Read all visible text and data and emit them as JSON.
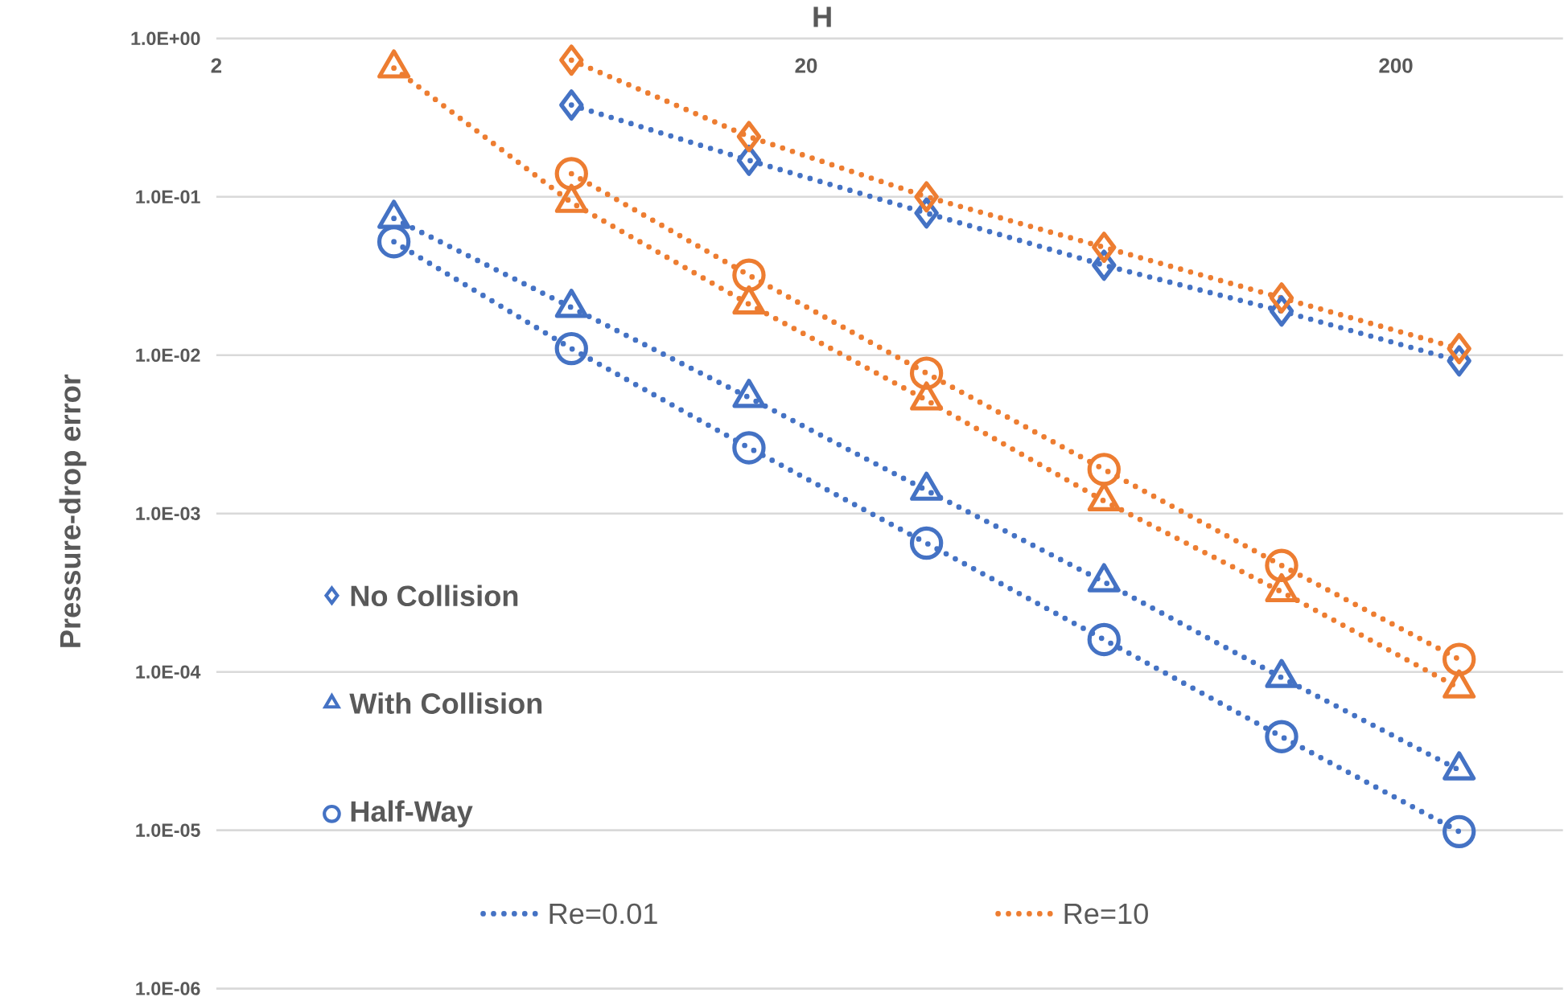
{
  "chart_data": {
    "type": "line",
    "xlabel": "H",
    "ylabel": "Pressure-drop error",
    "x": [
      4,
      8,
      16,
      32,
      64,
      128,
      256
    ],
    "log": "xy",
    "xlim": [
      2,
      384
    ],
    "ylim": [
      1e-06,
      1
    ],
    "xticks": [
      2,
      20,
      200
    ],
    "yticks": [
      {
        "value": 1e-06,
        "label": "1.0E-06"
      },
      {
        "value": 1e-05,
        "label": "1.0E-05"
      },
      {
        "value": 0.0001,
        "label": "1.0E-04"
      },
      {
        "value": 0.001,
        "label": "1.0E-03"
      },
      {
        "value": 0.01,
        "label": "1.0E-02"
      },
      {
        "value": 0.1,
        "label": "1.0E-01"
      },
      {
        "value": 1,
        "label": "1.0E+00"
      }
    ],
    "grid": "y",
    "line_style": "dotted",
    "series": [
      {
        "color": "#4472c4",
        "marker": "diamond",
        "values": [
          null,
          0.38,
          0.17,
          0.079,
          0.037,
          0.019,
          0.0092
        ]
      },
      {
        "color": "#4472c4",
        "marker": "triangle",
        "values": [
          0.073,
          0.02,
          0.0054,
          0.0014,
          0.00037,
          9.2e-05,
          2.4e-05
        ]
      },
      {
        "color": "#4472c4",
        "marker": "circle",
        "values": [
          0.052,
          0.011,
          0.0026,
          0.00065,
          0.00016,
          3.9e-05,
          9.8e-06
        ]
      },
      {
        "color": "#ed7d31",
        "marker": "diamond",
        "values": [
          null,
          0.73,
          0.24,
          0.1,
          0.048,
          0.023,
          0.011
        ]
      },
      {
        "color": "#ed7d31",
        "marker": "triangle",
        "values": [
          0.65,
          0.092,
          0.021,
          0.0052,
          0.0012,
          0.00032,
          7.9e-05
        ]
      },
      {
        "color": "#ed7d31",
        "marker": "circle",
        "values": [
          null,
          0.14,
          0.032,
          0.0077,
          0.0019,
          0.00047,
          0.00012
        ]
      }
    ],
    "annotations": [
      "No Collision",
      "With Collision",
      "Half-Way",
      "Re=0.01",
      "Re=10"
    ]
  }
}
